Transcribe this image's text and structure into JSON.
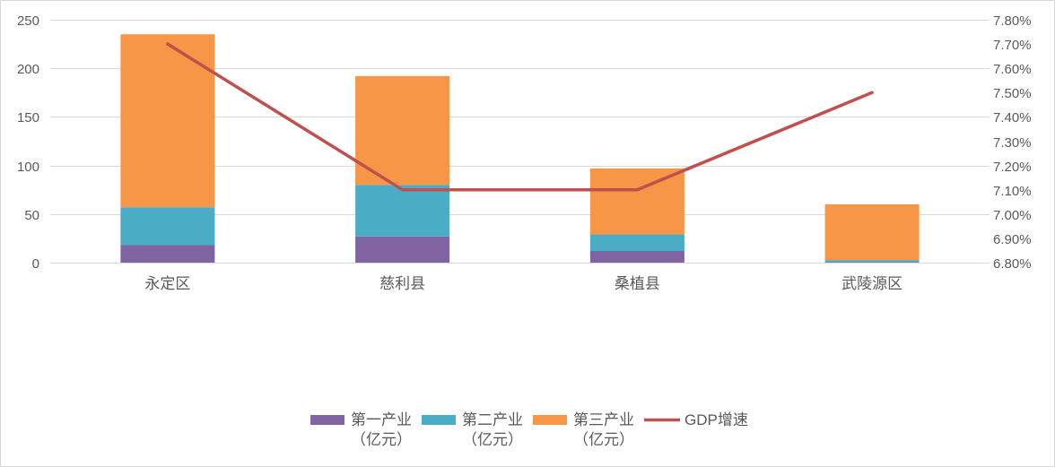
{
  "chart_data": {
    "type": "bar",
    "stacked": true,
    "categories": [
      "永定区",
      "慈利县",
      "桑植县",
      "武陵源区"
    ],
    "series": [
      {
        "name": "第一产业（亿元）",
        "type": "bar",
        "axis": "left",
        "color": "#8064A2",
        "values": [
          18,
          27,
          12,
          0.6
        ]
      },
      {
        "name": "第二产业（亿元）",
        "type": "bar",
        "axis": "left",
        "color": "#4BACC6",
        "values": [
          39,
          53,
          17,
          2.0
        ]
      },
      {
        "name": "第三产业（亿元）",
        "type": "bar",
        "axis": "left",
        "color": "#F79646",
        "values": [
          178,
          112,
          68,
          57.4
        ]
      },
      {
        "name": "GDP增速",
        "type": "line",
        "axis": "right",
        "color": "#C0504D",
        "values": [
          7.7,
          7.1,
          7.1,
          7.5
        ]
      }
    ],
    "y_left": {
      "min": 0,
      "max": 250,
      "ticks": [
        0,
        50,
        100,
        150,
        200,
        250
      ],
      "tick_labels": [
        "0",
        "50",
        "100",
        "150",
        "200",
        "250"
      ]
    },
    "y_right": {
      "min": 6.8,
      "max": 7.8,
      "ticks": [
        6.8,
        6.9,
        7.0,
        7.1,
        7.2,
        7.3,
        7.4,
        7.5,
        7.6,
        7.7,
        7.8
      ],
      "tick_labels": [
        "6.80%",
        "6.90%",
        "7.00%",
        "7.10%",
        "7.20%",
        "7.30%",
        "7.40%",
        "7.50%",
        "7.60%",
        "7.70%",
        "7.80%"
      ]
    },
    "grid": true,
    "legend": "bottom"
  }
}
